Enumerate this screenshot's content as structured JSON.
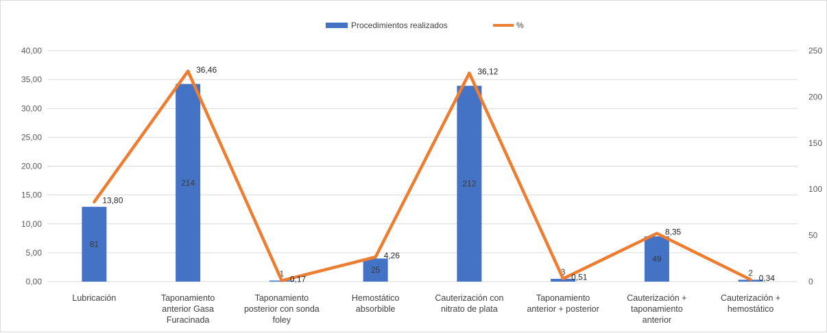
{
  "chart_data": {
    "type": "bar",
    "categories": [
      [
        "Lubricación"
      ],
      [
        "Taponamiento",
        "anterior Gasa",
        "Furacinada"
      ],
      [
        "Taponamiento",
        "posterior con sonda",
        "foley"
      ],
      [
        "Hemostático",
        "absorbible"
      ],
      [
        "Cauterización con",
        "nitrato de plata"
      ],
      [
        "Taponamiento",
        "anterior + posterior"
      ],
      [
        "Cauterización +",
        "taponamiento",
        "anterior"
      ],
      [
        "Cauterización +",
        "hemostático"
      ]
    ],
    "series": [
      {
        "name": "Procedimientos realizados",
        "type": "bar",
        "axis": "right",
        "values": [
          81,
          214,
          1,
          25,
          212,
          3,
          49,
          2
        ],
        "labels": [
          "81",
          "214",
          "1",
          "25",
          "212",
          "3",
          "49",
          "2"
        ],
        "color": "#4472c4"
      },
      {
        "name": "%",
        "type": "line",
        "axis": "left",
        "values": [
          13.8,
          36.46,
          0.17,
          4.26,
          36.12,
          0.51,
          8.35,
          0.34
        ],
        "labels": [
          "13,80",
          "36,46",
          "0,17",
          "4,26",
          "36,12",
          "0,51",
          "8,35",
          "0,34"
        ],
        "color": "#ed7d31"
      }
    ],
    "y_left": {
      "lim": [
        0,
        40
      ],
      "ticks": [
        "0,00",
        "5,00",
        "10,00",
        "15,00",
        "20,00",
        "25,00",
        "30,00",
        "35,00",
        "40,00"
      ]
    },
    "y_right": {
      "lim": [
        0,
        250
      ],
      "ticks": [
        "0",
        "50",
        "100",
        "150",
        "200",
        "250"
      ]
    },
    "legend_position": "top-center",
    "grid": true,
    "grid_color": "#d9d9d9"
  }
}
